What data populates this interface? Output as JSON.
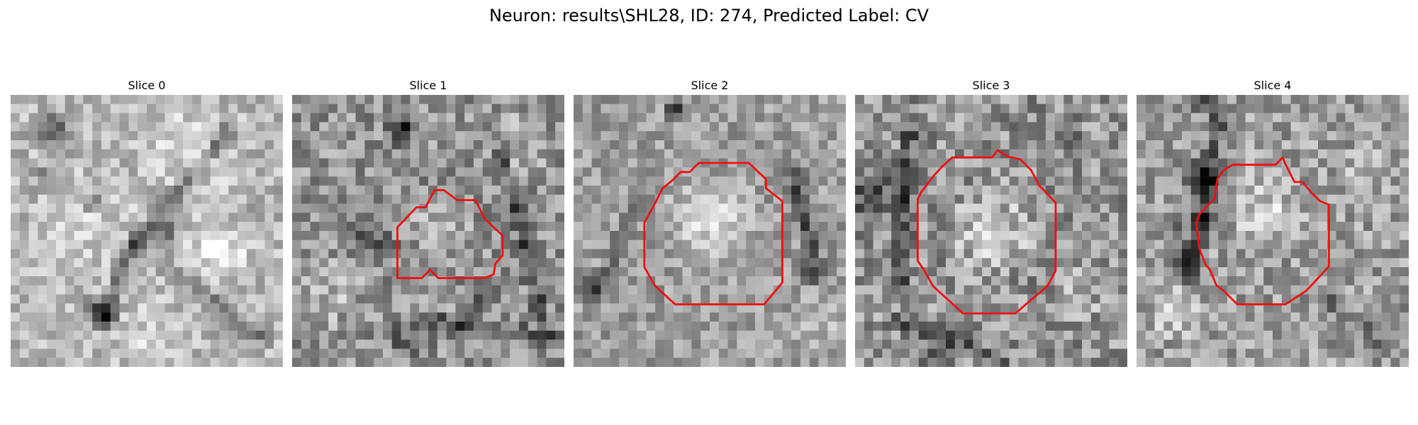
{
  "figure": {
    "title": "Neuron: results\\SHL28, ID: 274, Predicted Label: CV"
  },
  "colors": {
    "contour": "#ee1111",
    "background": "#ffffff"
  },
  "slices": [
    {
      "title": "Slice 0",
      "has_contour": false
    },
    {
      "title": "Slice 1",
      "has_contour": true
    },
    {
      "title": "Slice 2",
      "has_contour": true
    },
    {
      "title": "Slice 3",
      "has_contour": true
    },
    {
      "title": "Slice 4",
      "has_contour": true
    }
  ]
}
